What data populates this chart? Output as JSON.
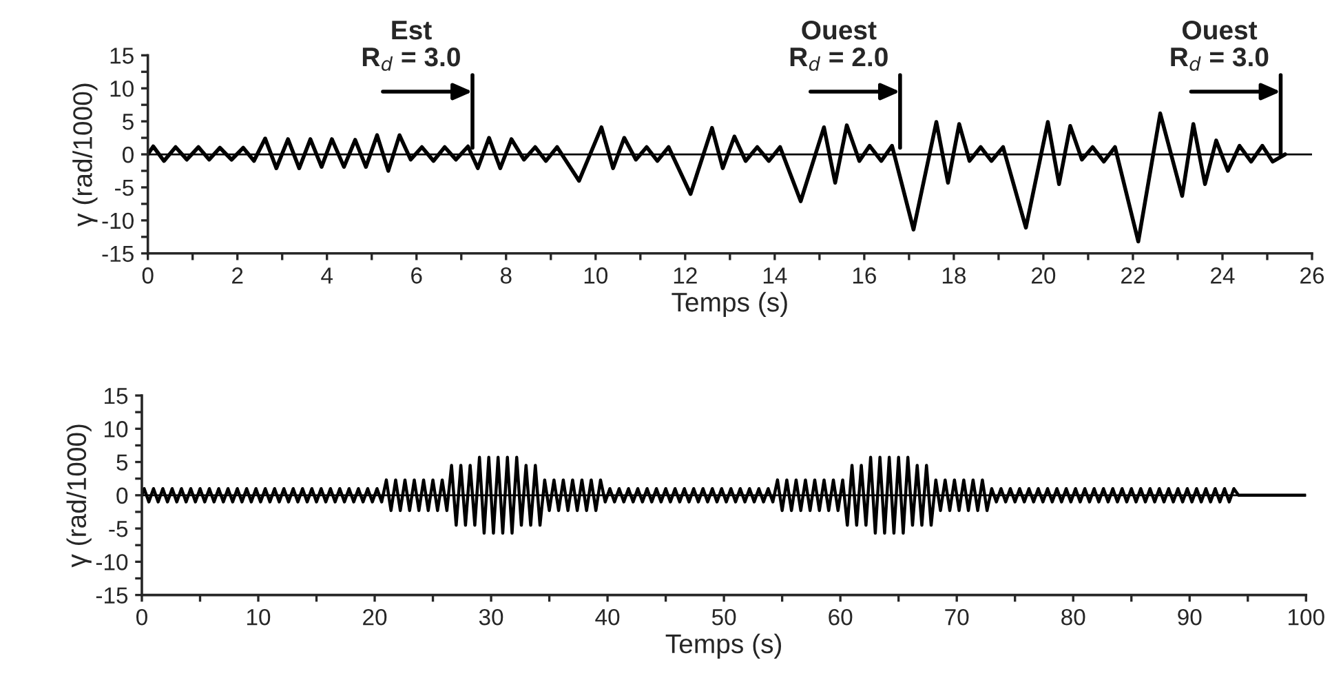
{
  "chart_data": [
    {
      "type": "line",
      "xlabel": "Temps (s)",
      "ylabel": "γ (rad/1000)",
      "xlim": [
        0,
        26
      ],
      "ylim": [
        -15,
        15
      ],
      "xticks": [
        0,
        {
          "value": 1,
          "label": null
        },
        2,
        {
          "value": 3,
          "label": null
        },
        4,
        {
          "value": 5,
          "label": null
        },
        6,
        {
          "value": 7,
          "label": null
        },
        8,
        {
          "value": 9,
          "label": null
        },
        10,
        {
          "value": 11,
          "label": null
        },
        12,
        {
          "value": 13,
          "label": null
        },
        14,
        {
          "value": 15,
          "label": null
        },
        16,
        {
          "value": 17,
          "label": null
        },
        18,
        {
          "value": 19,
          "label": null
        },
        20,
        {
          "value": 21,
          "label": null
        },
        22,
        {
          "value": 23,
          "label": null
        },
        24,
        {
          "value": 25,
          "label": null
        },
        26
      ],
      "yticks": [
        -15,
        {
          "value": -12.5,
          "label": null
        },
        -10,
        {
          "value": -7.5,
          "label": null
        },
        -5,
        {
          "value": -2.5,
          "label": null
        },
        0,
        {
          "value": 2.5,
          "label": null
        },
        5,
        {
          "value": 7.5,
          "label": null
        },
        10,
        {
          "value": 12.5,
          "label": null
        },
        15
      ],
      "grid": false,
      "legend": false,
      "line_style": "solid",
      "marker": "none",
      "ref_lines": [
        {
          "axis": "y",
          "value": 0,
          "color": "#000000"
        }
      ],
      "annotations": [
        {
          "text": "Est\nR$_{d}$ = 3.0",
          "x": 7.25,
          "y": 1
        },
        {
          "text": "Ouest\nR$_{d}$ = 2.0",
          "x": 16.8,
          "y": 1
        },
        {
          "text": "Ouest\nR$_{d}$ = 3.0",
          "x": 25.3,
          "y": 0
        }
      ],
      "series": [
        {
          "color": "#000000",
          "x": [
            0,
            0.12,
            0.36,
            0.62,
            0.87,
            1.13,
            1.37,
            1.61,
            1.87,
            2.13,
            2.37,
            2.62,
            2.87,
            3.13,
            3.38,
            3.63,
            3.88,
            4.11,
            4.38,
            4.63,
            4.87,
            5.12,
            5.37,
            5.62,
            5.87,
            6.12,
            6.38,
            6.63,
            6.88,
            7.15,
            7.37,
            7.62,
            7.87,
            8.12,
            8.4,
            8.65,
            8.89,
            9.14,
            9.63,
            10.13,
            10.39,
            10.64,
            10.9,
            11.14,
            11.38,
            11.63,
            12.12,
            12.6,
            12.84,
            13.1,
            13.35,
            13.61,
            13.87,
            14.12,
            14.58,
            15.1,
            15.35,
            15.61,
            15.89,
            16.12,
            16.38,
            16.62,
            17.1,
            17.61,
            17.87,
            18.12,
            18.35,
            18.6,
            18.84,
            19.1,
            19.61,
            20.1,
            20.35,
            20.6,
            20.86,
            21.1,
            21.35,
            21.6,
            22.12,
            22.61,
            23.1,
            23.35,
            23.61,
            23.86,
            24.12,
            24.38,
            24.64,
            24.89,
            25.12,
            25.4
          ],
          "values": [
            0,
            1.2,
            -1,
            1.1,
            -0.8,
            1.1,
            -0.8,
            1,
            -0.8,
            1,
            -1,
            2.4,
            -2.1,
            2.3,
            -2.1,
            2.3,
            -1.9,
            2.3,
            -1.9,
            2.2,
            -1.9,
            2.9,
            -2.5,
            2.9,
            -0.8,
            1.1,
            -1,
            1.1,
            -0.8,
            1.2,
            -2.1,
            2.5,
            -2.1,
            2.3,
            -0.8,
            1.1,
            -1,
            1.1,
            -4,
            4.1,
            -2.1,
            2.5,
            -0.8,
            1.1,
            -1,
            1.1,
            -6,
            4,
            -2.1,
            2.7,
            -1,
            1.1,
            -1,
            1.1,
            -7.1,
            4.1,
            -4.3,
            4.4,
            -1,
            1.3,
            -1,
            1.3,
            -11.4,
            4.9,
            -4.3,
            4.6,
            -1,
            1.1,
            -1,
            1.1,
            -11.1,
            4.9,
            -4.5,
            4.3,
            -0.8,
            1.1,
            -1.1,
            1.1,
            -13.2,
            6.2,
            -6.3,
            4.6,
            -4.5,
            2.1,
            -2.5,
            1.3,
            -1.1,
            1.3,
            -1.1,
            0
          ]
        }
      ]
    },
    {
      "type": "line",
      "xlabel": "Temps (s)",
      "ylabel": "γ (rad/1000)",
      "xlim": [
        0,
        100
      ],
      "ylim": [
        -15,
        15
      ],
      "xticks": [
        0,
        {
          "value": 5,
          "label": null
        },
        10,
        {
          "value": 15,
          "label": null
        },
        20,
        {
          "value": 25,
          "label": null
        },
        30,
        {
          "value": 35,
          "label": null
        },
        40,
        {
          "value": 45,
          "label": null
        },
        50,
        {
          "value": 55,
          "label": null
        },
        60,
        {
          "value": 65,
          "label": null
        },
        70,
        {
          "value": 75,
          "label": null
        },
        80,
        {
          "value": 85,
          "label": null
        },
        90,
        {
          "value": 95,
          "label": null
        },
        100
      ],
      "yticks": [
        -15,
        {
          "value": -12.5,
          "label": null
        },
        -10,
        {
          "value": -7.5,
          "label": null
        },
        -5,
        {
          "value": -2.5,
          "label": null
        },
        0,
        {
          "value": 2.5,
          "label": null
        },
        5,
        {
          "value": 7.5,
          "label": null
        },
        10,
        {
          "value": 12.5,
          "label": null
        },
        15
      ],
      "grid": false,
      "legend": false,
      "line_style": "solid",
      "marker": "none",
      "ref_lines": [
        {
          "axis": "y",
          "value": 0,
          "color": "#000000"
        }
      ],
      "series": [
        {
          "color": "#000000",
          "x": [
            0,
            0.2,
            0.6,
            1,
            1.4,
            1.8,
            2.2,
            2.6,
            3,
            3.4,
            3.8,
            4.2,
            4.6,
            5,
            5.4,
            5.8,
            6.2,
            6.6,
            7,
            7.4,
            7.8,
            8.2,
            8.6,
            9,
            9.4,
            9.8,
            10.2,
            10.6,
            11,
            11.4,
            11.8,
            12.2,
            12.6,
            13,
            13.4,
            13.8,
            14.2,
            14.6,
            15,
            15.4,
            15.8,
            16.2,
            16.6,
            17,
            17.4,
            17.8,
            18.2,
            18.6,
            19,
            19.4,
            19.8,
            20.2,
            20.6,
            21,
            21.4,
            21.8,
            22.2,
            22.6,
            23,
            23.4,
            23.8,
            24.2,
            24.6,
            25,
            25.4,
            25.8,
            26.2,
            26.6,
            27,
            27.4,
            27.8,
            28.2,
            28.6,
            29,
            29.4,
            29.8,
            30.2,
            30.6,
            31,
            31.4,
            31.8,
            32.2,
            32.6,
            33,
            33.4,
            33.8,
            34.2,
            34.6,
            35,
            35.4,
            35.8,
            36.2,
            36.6,
            37,
            37.4,
            37.8,
            38.2,
            38.6,
            39,
            39.4,
            39.8,
            40.2,
            40.6,
            41,
            41.4,
            41.8,
            42.2,
            42.6,
            43,
            43.4,
            43.8,
            44.2,
            44.6,
            45,
            45.4,
            45.8,
            46.2,
            46.6,
            47,
            47.4,
            47.8,
            48.2,
            48.6,
            49,
            49.4,
            49.8,
            50.2,
            50.6,
            51,
            51.4,
            51.8,
            52.2,
            52.6,
            53,
            53.4,
            53.8,
            54.2,
            54.6,
            55,
            55.4,
            55.8,
            56.2,
            56.6,
            57,
            57.4,
            57.8,
            58.2,
            58.6,
            59,
            59.4,
            59.8,
            60.2,
            60.6,
            61,
            61.4,
            61.8,
            62.2,
            62.6,
            63,
            63.4,
            63.8,
            64.2,
            64.6,
            65,
            65.4,
            65.8,
            66.2,
            66.6,
            67,
            67.4,
            67.8,
            68.2,
            68.6,
            69,
            69.4,
            69.8,
            70.2,
            70.6,
            71,
            71.4,
            71.8,
            72.2,
            72.6,
            73,
            73.4,
            73.8,
            74.2,
            74.6,
            75,
            75.4,
            75.8,
            76.2,
            76.6,
            77,
            77.4,
            77.8,
            78.2,
            78.6,
            79,
            79.4,
            79.8,
            80.2,
            80.6,
            81,
            81.4,
            81.8,
            82.2,
            82.6,
            83,
            83.4,
            83.8,
            84.2,
            84.6,
            85,
            85.4,
            85.8,
            86.2,
            86.6,
            87,
            87.4,
            87.8,
            88.2,
            88.6,
            89,
            89.4,
            89.8,
            90.2,
            90.6,
            91,
            91.4,
            91.8,
            92.2,
            92.6,
            93,
            93.4,
            93.8,
            94.2,
            100
          ],
          "values": [
            0,
            1,
            -1,
            1,
            -1,
            1,
            -1,
            1,
            -1,
            1,
            -1,
            1,
            -1,
            1,
            -1,
            1,
            -1,
            1,
            -1,
            1,
            -1,
            1,
            -1,
            1,
            -1,
            1,
            -1,
            1,
            -1,
            1,
            -1,
            1,
            -1,
            1,
            -1,
            1,
            -1,
            1,
            -1,
            1,
            -1,
            1,
            -1,
            1,
            -1,
            1,
            -1,
            1,
            -1,
            1,
            -1,
            1,
            -1,
            2.3,
            -2.3,
            2.3,
            -2.3,
            2.3,
            -2.3,
            2.3,
            -2.3,
            2.3,
            -2.3,
            2.3,
            -2.3,
            2.3,
            -2.3,
            4.5,
            -4.5,
            4.5,
            -4.5,
            4.5,
            -4.5,
            5.7,
            -5.7,
            5.7,
            -5.7,
            5.7,
            -5.7,
            5.7,
            -5.7,
            5.7,
            -4.5,
            4.5,
            -4.5,
            4.5,
            -4.5,
            2.3,
            -2.3,
            2.3,
            -2.3,
            2.3,
            -2.3,
            2.3,
            -2.3,
            2.3,
            -2.3,
            2.3,
            -2.3,
            2.3,
            -1,
            1,
            -1,
            1,
            -1,
            1,
            -1,
            1,
            -1,
            1,
            -1,
            1,
            -1,
            1,
            -1,
            1,
            -1,
            1,
            -1,
            1,
            -1,
            1,
            -1,
            1,
            -1,
            1,
            -1,
            1,
            -1,
            1,
            -1,
            1,
            -1,
            1,
            -1,
            1,
            -1,
            2.3,
            -2.3,
            2.3,
            -2.3,
            2.3,
            -2.3,
            2.3,
            -2.3,
            2.3,
            -2.3,
            2.3,
            -2.3,
            2.3,
            -2.3,
            2.3,
            -4.5,
            4.5,
            -4.5,
            4.5,
            -4.5,
            5.7,
            -5.7,
            5.7,
            -5.7,
            5.7,
            -5.7,
            5.7,
            -5.7,
            5.7,
            -4.5,
            4.5,
            -4.5,
            4.5,
            -4.5,
            2.3,
            -2.3,
            2.3,
            -2.3,
            2.3,
            -2.3,
            2.3,
            -2.3,
            2.3,
            -2.3,
            2.3,
            -2.3,
            1,
            -1,
            1,
            -1,
            1,
            -1,
            1,
            -1,
            1,
            -1,
            1,
            -1,
            1,
            -1,
            1,
            -1,
            1,
            -1,
            1,
            -1,
            1,
            -1,
            1,
            -1,
            1,
            -1,
            1,
            -1,
            1,
            -1,
            1,
            -1,
            1,
            -1,
            1,
            -1,
            1,
            -1,
            1,
            -1,
            1,
            -1,
            1,
            -1,
            1,
            -1,
            1,
            -1,
            1,
            -1,
            1,
            -1,
            1,
            0,
            0
          ]
        }
      ]
    }
  ]
}
